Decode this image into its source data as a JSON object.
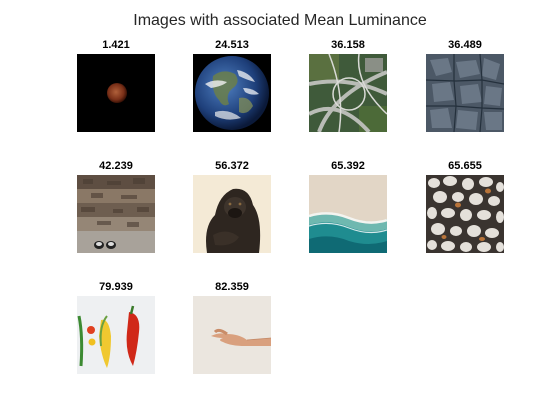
{
  "figure": {
    "title": "Images with associated Mean Luminance"
  },
  "images": [
    {
      "label": "1.421",
      "subject": "eclipsed-moon-image"
    },
    {
      "label": "24.513",
      "subject": "earth-globe-image"
    },
    {
      "label": "36.158",
      "subject": "highway-interchange-image"
    },
    {
      "label": "36.489",
      "subject": "cracked-ground-image"
    },
    {
      "label": "42.239",
      "subject": "stone-steps-image"
    },
    {
      "label": "56.372",
      "subject": "gorilla-image"
    },
    {
      "label": "65.392",
      "subject": "beach-shoreline-image"
    },
    {
      "label": "65.655",
      "subject": "pebbles-image"
    },
    {
      "label": "79.939",
      "subject": "vegetables-image"
    },
    {
      "label": "82.359",
      "subject": "outstretched-hand-image"
    }
  ]
}
